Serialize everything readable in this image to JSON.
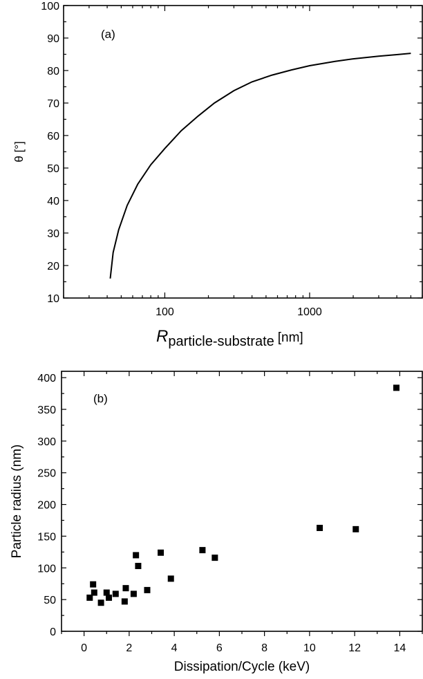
{
  "chart_data": [
    {
      "type": "line",
      "panel_label": "(a)",
      "x_scale": "log",
      "xlim": [
        20,
        6000
      ],
      "ylim": [
        10,
        100
      ],
      "x_ticks": [
        100,
        1000
      ],
      "x_tick_labels": [
        "100",
        "1000"
      ],
      "y_ticks": [
        10,
        20,
        30,
        40,
        50,
        60,
        70,
        80,
        90,
        100
      ],
      "y_tick_labels": [
        "10",
        "20",
        "30",
        "40",
        "50",
        "60",
        "70",
        "80",
        "90",
        "100"
      ],
      "xlabel_main": "R",
      "xlabel_sub": "particle-substrate",
      "xlabel_unit": "[nm]",
      "ylabel": "θ [°]",
      "grid": false,
      "series": [
        {
          "x": [
            42,
            44,
            48,
            55,
            65,
            80,
            100,
            130,
            170,
            220,
            300,
            400,
            550,
            750,
            1000,
            1500,
            2000,
            3000,
            4000,
            5000
          ],
          "y": [
            16,
            24,
            31,
            38.5,
            45,
            51,
            56,
            61.5,
            66,
            70,
            73.8,
            76.5,
            78.6,
            80.2,
            81.5,
            82.8,
            83.6,
            84.4,
            84.9,
            85.3
          ]
        }
      ]
    },
    {
      "type": "scatter",
      "panel_label": "(b)",
      "xlim": [
        -1,
        15
      ],
      "ylim": [
        0,
        410
      ],
      "x_ticks": [
        0,
        2,
        4,
        6,
        8,
        10,
        12,
        14
      ],
      "x_tick_labels": [
        "0",
        "2",
        "4",
        "6",
        "8",
        "10",
        "12",
        "14"
      ],
      "y_ticks": [
        0,
        50,
        100,
        150,
        200,
        250,
        300,
        350,
        400
      ],
      "y_tick_labels": [
        "0",
        "50",
        "100",
        "150",
        "200",
        "250",
        "300",
        "350",
        "400"
      ],
      "xlabel": "Dissipation/Cycle (keV)",
      "ylabel": "Particle radius (nm)",
      "grid": false,
      "series": [
        {
          "x": [
            0.25,
            0.4,
            0.45,
            0.75,
            1.0,
            1.1,
            1.4,
            1.8,
            1.85,
            2.2,
            2.3,
            2.4,
            2.8,
            3.4,
            3.85,
            5.25,
            5.8,
            10.45,
            12.05,
            13.85
          ],
          "y": [
            53,
            74,
            61,
            45,
            61,
            53,
            59,
            47,
            68,
            59,
            120,
            103,
            65,
            124,
            83,
            128,
            116,
            163,
            161,
            384
          ]
        }
      ]
    }
  ]
}
